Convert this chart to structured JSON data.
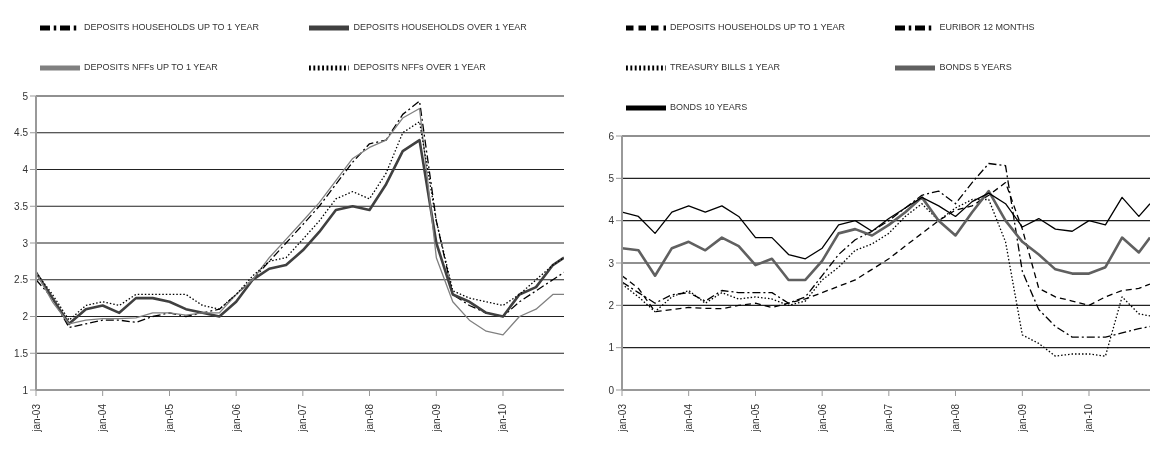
{
  "chart_data": [
    {
      "type": "line",
      "x": [
        "2003-01",
        "2003-04",
        "2003-07",
        "2003-10",
        "2004-01",
        "2004-04",
        "2004-07",
        "2004-10",
        "2005-01",
        "2005-04",
        "2005-07",
        "2005-10",
        "2006-01",
        "2006-04",
        "2006-07",
        "2006-10",
        "2007-01",
        "2007-04",
        "2007-07",
        "2007-10",
        "2008-01",
        "2008-04",
        "2008-07",
        "2008-10",
        "2009-01",
        "2009-04",
        "2009-07",
        "2009-10",
        "2010-01",
        "2010-04",
        "2010-07",
        "2010-10",
        "2010-12"
      ],
      "xlim": [
        "2003-01",
        "2010-12"
      ],
      "xticks": [
        {
          "value": "2003-01",
          "label": "jan-03"
        },
        {
          "value": "2004-01",
          "label": "jan-04"
        },
        {
          "value": "2005-01",
          "label": "jan-05"
        },
        {
          "value": "2006-01",
          "label": "jan-06"
        },
        {
          "value": "2007-01",
          "label": "jan-07"
        },
        {
          "value": "2008-01",
          "label": "jan-08"
        },
        {
          "value": "2009-01",
          "label": "jan-09"
        },
        {
          "value": "2010-01",
          "label": "jan-10"
        }
      ],
      "ylim": [
        1,
        5
      ],
      "yticks": [
        1,
        1.5,
        2,
        2.5,
        3,
        3.5,
        4,
        4.5,
        5
      ],
      "grid": "y",
      "legend": "top",
      "marker": "none",
      "series": [
        {
          "name": "DEPOSITS HOUSEHOLDS UP TO 1 YEAR",
          "color": "#000000",
          "line_style": "dashdot",
          "values": [
            2.5,
            2.25,
            1.85,
            1.9,
            1.95,
            1.95,
            1.92,
            2.0,
            2.05,
            2.0,
            2.05,
            2.1,
            2.3,
            2.5,
            2.75,
            3.0,
            3.25,
            3.5,
            3.8,
            4.1,
            4.35,
            4.4,
            4.75,
            4.93,
            3.3,
            2.3,
            2.15,
            2.05,
            2.0,
            2.2,
            2.35,
            2.5,
            2.6
          ]
        },
        {
          "name": "DEPOSITS HOUSEHOLDS OVER 1 YEAR",
          "color": "#404040",
          "line_style": "solid",
          "values": [
            2.6,
            2.25,
            1.9,
            2.1,
            2.15,
            2.05,
            2.25,
            2.25,
            2.2,
            2.1,
            2.05,
            2.0,
            2.2,
            2.5,
            2.65,
            2.7,
            2.9,
            3.15,
            3.45,
            3.5,
            3.45,
            3.8,
            4.25,
            4.4,
            3.0,
            2.3,
            2.2,
            2.05,
            2.0,
            2.3,
            2.4,
            2.7,
            2.8
          ]
        },
        {
          "name": "DEPOSITS NFFs UP TO 1 YEAR",
          "color": "#808080",
          "line_style": "solid",
          "values": [
            2.6,
            2.2,
            1.9,
            1.95,
            1.97,
            1.97,
            1.98,
            2.05,
            2.05,
            2.02,
            2.05,
            2.05,
            2.3,
            2.5,
            2.8,
            3.05,
            3.3,
            3.55,
            3.85,
            4.15,
            4.3,
            4.4,
            4.7,
            4.83,
            2.8,
            2.2,
            1.95,
            1.8,
            1.75,
            2.0,
            2.1,
            2.3,
            2.3
          ]
        },
        {
          "name": "DEPOSITS NFFs OVER 1 YEAR",
          "color": "#000000",
          "line_style": "dotted",
          "values": [
            2.6,
            2.3,
            1.95,
            2.15,
            2.2,
            2.15,
            2.3,
            2.3,
            2.3,
            2.3,
            2.15,
            2.1,
            2.3,
            2.55,
            2.75,
            2.8,
            3.05,
            3.3,
            3.6,
            3.7,
            3.6,
            3.95,
            4.5,
            4.65,
            3.3,
            2.35,
            2.25,
            2.2,
            2.15,
            2.3,
            2.5,
            2.7,
            2.8
          ]
        }
      ]
    },
    {
      "type": "line",
      "x": [
        "2003-01",
        "2003-04",
        "2003-07",
        "2003-10",
        "2004-01",
        "2004-04",
        "2004-07",
        "2004-10",
        "2005-01",
        "2005-04",
        "2005-07",
        "2005-10",
        "2006-01",
        "2006-04",
        "2006-07",
        "2006-10",
        "2007-01",
        "2007-04",
        "2007-07",
        "2007-10",
        "2008-01",
        "2008-04",
        "2008-07",
        "2008-10",
        "2009-01",
        "2009-04",
        "2009-07",
        "2009-10",
        "2010-01",
        "2010-04",
        "2010-07",
        "2010-10",
        "2010-12"
      ],
      "xlim": [
        "2003-01",
        "2010-12"
      ],
      "xticks": [
        {
          "value": "2003-01",
          "label": "jan-03"
        },
        {
          "value": "2004-01",
          "label": "jan-04"
        },
        {
          "value": "2005-01",
          "label": "jan-05"
        },
        {
          "value": "2006-01",
          "label": "jan-06"
        },
        {
          "value": "2007-01",
          "label": "jan-07"
        },
        {
          "value": "2008-01",
          "label": "jan-08"
        },
        {
          "value": "2009-01",
          "label": "jan-09"
        },
        {
          "value": "2010-01",
          "label": "jan-10"
        }
      ],
      "ylim": [
        0,
        6
      ],
      "yticks": [
        0,
        1,
        2,
        3,
        4,
        5,
        6
      ],
      "grid": "y",
      "legend": "top",
      "marker": "none",
      "series": [
        {
          "name": "DEPOSITS HOUSEHOLDS UP TO 1 YEAR",
          "color": "#000000",
          "line_style": "dashed",
          "values": [
            2.7,
            2.4,
            1.85,
            1.9,
            1.95,
            1.93,
            1.92,
            2.0,
            2.05,
            1.95,
            2.05,
            2.15,
            2.3,
            2.45,
            2.6,
            2.85,
            3.1,
            3.4,
            3.7,
            4.0,
            4.25,
            4.35,
            4.6,
            4.9,
            3.8,
            2.4,
            2.2,
            2.1,
            2.0,
            2.2,
            2.35,
            2.4,
            2.5
          ]
        },
        {
          "name": "EURIBOR 12 MONTHS",
          "color": "#000000",
          "line_style": "dashdot",
          "values": [
            2.55,
            2.3,
            2.05,
            2.25,
            2.3,
            2.1,
            2.35,
            2.3,
            2.3,
            2.3,
            2.05,
            2.2,
            2.7,
            3.2,
            3.55,
            3.75,
            4.0,
            4.3,
            4.6,
            4.7,
            4.4,
            4.9,
            5.35,
            5.3,
            2.8,
            1.9,
            1.5,
            1.25,
            1.25,
            1.25,
            1.35,
            1.45,
            1.5
          ]
        },
        {
          "name": "TREASURY BILLS 1 YEAR",
          "color": "#000000",
          "line_style": "dotted",
          "values": [
            2.5,
            2.2,
            1.85,
            2.2,
            2.35,
            2.05,
            2.3,
            2.15,
            2.2,
            2.15,
            2.0,
            2.1,
            2.6,
            2.9,
            3.3,
            3.45,
            3.7,
            4.1,
            4.4,
            4.0,
            4.3,
            4.5,
            4.5,
            3.5,
            1.3,
            1.1,
            0.8,
            0.85,
            0.85,
            0.8,
            2.2,
            1.8,
            1.75
          ]
        },
        {
          "name": "BONDS 5 YEARS",
          "color": "#606060",
          "line_style": "solid",
          "values": [
            3.35,
            3.3,
            2.7,
            3.35,
            3.5,
            3.3,
            3.6,
            3.4,
            2.95,
            3.1,
            2.6,
            2.6,
            3.05,
            3.7,
            3.8,
            3.65,
            3.9,
            4.2,
            4.55,
            4.0,
            3.65,
            4.2,
            4.7,
            4.0,
            3.5,
            3.2,
            2.85,
            2.75,
            2.75,
            2.9,
            3.6,
            3.25,
            3.6
          ]
        },
        {
          "name": "BONDS 10 YEARS",
          "color": "#000000",
          "line_style": "solid",
          "values": [
            4.2,
            4.1,
            3.7,
            4.2,
            4.35,
            4.2,
            4.35,
            4.1,
            3.6,
            3.6,
            3.2,
            3.1,
            3.35,
            3.9,
            4.0,
            3.75,
            4.05,
            4.3,
            4.55,
            4.35,
            4.1,
            4.45,
            4.65,
            4.4,
            3.85,
            4.05,
            3.8,
            3.75,
            4.0,
            3.9,
            4.55,
            4.1,
            4.4
          ]
        }
      ]
    }
  ]
}
